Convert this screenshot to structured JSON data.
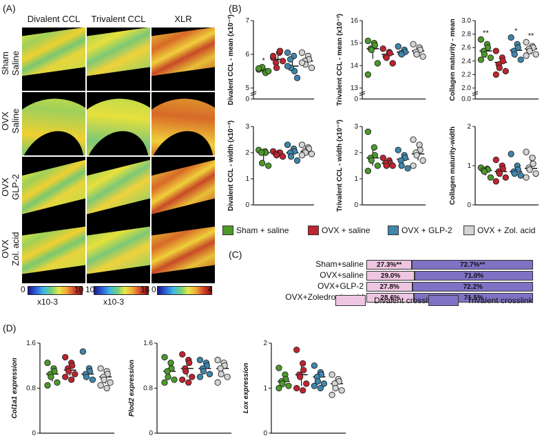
{
  "panels": {
    "a": "(A)",
    "b": "(B)",
    "c": "(C)",
    "d": "(D)"
  },
  "image_grid": {
    "columns": [
      "Divalent CCL",
      "Trivalent CCL",
      "XLR"
    ],
    "rows": [
      "Sham\nSaline",
      "OVX\nSaline",
      "OVX\nGLP-2",
      "OVX\nZol. acid"
    ],
    "colorbars": [
      {
        "min": "0",
        "max": "10",
        "unit": "x10-3"
      },
      {
        "min": "10",
        "max": "18",
        "unit": "x10-3"
      },
      {
        "min": "0",
        "max": "4",
        "unit": ""
      }
    ]
  },
  "legend": {
    "items": [
      {
        "label": "Sham + saline",
        "color": "#4c9a2a"
      },
      {
        "label": "OVX + saline",
        "color": "#c0242f"
      },
      {
        "label": "OVX + GLP-2",
        "color": "#3f86ad"
      },
      {
        "label": "OVX + Zol. acid",
        "color": "#d4d4d4"
      }
    ]
  },
  "chart_data": [
    {
      "id": "b1",
      "type": "scatter",
      "ylabel": "Divalent CCL - mean (x10⁻³)",
      "ylim": [
        5,
        7
      ],
      "yticks": [
        "0",
        "5",
        "6",
        "7"
      ],
      "break": true,
      "groups": [
        {
          "points": [
            5.55,
            5.5,
            5.45,
            5.6,
            5.62,
            5.5,
            5.58
          ],
          "median": 5.55,
          "lo": 5.47,
          "hi": 5.62,
          "sig": "*"
        },
        {
          "points": [
            5.9,
            6.05,
            6.1,
            5.75,
            5.6,
            5.8,
            5.95
          ],
          "median": 5.85,
          "lo": 5.7,
          "hi": 6.05,
          "sig": ""
        },
        {
          "points": [
            6.05,
            5.95,
            5.5,
            5.85,
            5.6,
            5.3,
            5.65
          ],
          "median": 5.65,
          "lo": 5.45,
          "hi": 5.95,
          "sig": ""
        },
        {
          "points": [
            6.05,
            5.95,
            5.85,
            5.8,
            5.7,
            5.6,
            5.75
          ],
          "median": 5.8,
          "lo": 5.68,
          "hi": 5.95,
          "sig": ""
        }
      ]
    },
    {
      "id": "b2",
      "type": "scatter",
      "ylabel": "Trivalent CCL - mean (x10⁻³)",
      "ylim": [
        13,
        16
      ],
      "yticks": [
        "0",
        "13",
        "14",
        "15",
        "16"
      ],
      "break": true,
      "groups": [
        {
          "points": [
            15.1,
            15.0,
            14.9,
            14.75,
            14.7,
            14.1,
            13.6
          ],
          "median": 14.75,
          "lo": 14.3,
          "hi": 15.0,
          "sig": ""
        },
        {
          "points": [
            14.75,
            14.6,
            14.55,
            14.4,
            14.35,
            14.1
          ],
          "median": 14.5,
          "lo": 14.3,
          "hi": 14.65,
          "sig": ""
        },
        {
          "points": [
            14.85,
            14.7,
            14.6,
            14.55,
            14.5
          ],
          "median": 14.6,
          "lo": 14.5,
          "hi": 14.75,
          "sig": ""
        },
        {
          "points": [
            14.95,
            14.8,
            14.7,
            14.6,
            14.5,
            14.4
          ],
          "median": 14.65,
          "lo": 14.45,
          "hi": 14.8,
          "sig": ""
        }
      ]
    },
    {
      "id": "b3",
      "type": "scatter",
      "ylabel": "Collagen maturity - mean",
      "ylim": [
        2.0,
        3.0
      ],
      "yticks": [
        "0.0",
        "2.0",
        "2.2",
        "2.4",
        "2.6",
        "2.8",
        "3.0"
      ],
      "break": true,
      "groups": [
        {
          "points": [
            2.72,
            2.65,
            2.6,
            2.55,
            2.5,
            2.45,
            2.42
          ],
          "median": 2.55,
          "lo": 2.45,
          "hi": 2.65,
          "sig": "**"
        },
        {
          "points": [
            2.55,
            2.45,
            2.4,
            2.35,
            2.3,
            2.25,
            2.2
          ],
          "median": 2.38,
          "lo": 2.28,
          "hi": 2.45,
          "sig": ""
        },
        {
          "points": [
            2.75,
            2.65,
            2.6,
            2.55,
            2.5,
            2.42
          ],
          "median": 2.56,
          "lo": 2.45,
          "hi": 2.68,
          "sig": "*"
        },
        {
          "points": [
            2.68,
            2.62,
            2.6,
            2.58,
            2.55,
            2.5,
            2.48
          ],
          "median": 2.58,
          "lo": 2.5,
          "hi": 2.62,
          "sig": "**"
        }
      ]
    },
    {
      "id": "b4",
      "type": "scatter",
      "ylabel": "Divalent CCL - width (x10⁻³)",
      "ylim": [
        0,
        3
      ],
      "yticks": [
        "0",
        "1",
        "2",
        "3"
      ],
      "break": false,
      "groups": [
        {
          "points": [
            2.1,
            2.05,
            2.0,
            2.0,
            1.6,
            1.5
          ],
          "median": 2.0,
          "lo": 1.6,
          "hi": 2.05,
          "sig": ""
        },
        {
          "points": [
            2.05,
            2.0,
            2.0,
            1.95,
            1.9,
            1.85
          ],
          "median": 1.95,
          "lo": 1.9,
          "hi": 2.0,
          "sig": ""
        },
        {
          "points": [
            2.3,
            2.15,
            2.05,
            2.0,
            1.85,
            1.7
          ],
          "median": 2.0,
          "lo": 1.8,
          "hi": 2.15,
          "sig": ""
        },
        {
          "points": [
            2.3,
            2.2,
            2.15,
            2.05,
            2.0,
            1.95,
            1.9
          ],
          "median": 2.05,
          "lo": 1.95,
          "hi": 2.2,
          "sig": ""
        }
      ]
    },
    {
      "id": "b5",
      "type": "scatter",
      "ylabel": "Trivalent CCL - width (x10⁻³)",
      "ylim": [
        0,
        3
      ],
      "yticks": [
        "0",
        "1",
        "2",
        "3"
      ],
      "break": false,
      "groups": [
        {
          "points": [
            2.8,
            2.2,
            1.9,
            1.8,
            1.7,
            1.5,
            1.3
          ],
          "median": 1.8,
          "lo": 1.5,
          "hi": 2.2,
          "sig": ""
        },
        {
          "points": [
            1.8,
            1.7,
            1.6,
            1.6,
            1.5,
            1.5
          ],
          "median": 1.6,
          "lo": 1.5,
          "hi": 1.75,
          "sig": ""
        },
        {
          "points": [
            2.1,
            1.9,
            1.8,
            1.7,
            1.5,
            1.4
          ],
          "median": 1.75,
          "lo": 1.5,
          "hi": 1.95,
          "sig": ""
        },
        {
          "points": [
            2.5,
            2.3,
            2.1,
            2.0,
            1.9,
            1.7,
            1.5
          ],
          "median": 1.95,
          "lo": 1.7,
          "hi": 2.3,
          "sig": ""
        }
      ]
    },
    {
      "id": "b6",
      "type": "scatter",
      "ylabel": "Collagen maturity-width",
      "ylim": [
        0,
        2
      ],
      "yticks": [
        "0",
        "1",
        "2"
      ],
      "break": false,
      "groups": [
        {
          "points": [
            0.95,
            0.92,
            0.9,
            0.88,
            0.85,
            0.7
          ],
          "median": 0.88,
          "lo": 0.75,
          "hi": 0.93,
          "sig": ""
        },
        {
          "points": [
            1.15,
            1.0,
            0.92,
            0.85,
            0.8,
            0.7,
            0.6
          ],
          "median": 0.85,
          "lo": 0.72,
          "hi": 1.0,
          "sig": ""
        },
        {
          "points": [
            1.3,
            1.0,
            0.9,
            0.85,
            0.8,
            0.75
          ],
          "median": 0.85,
          "lo": 0.78,
          "hi": 1.0,
          "sig": ""
        },
        {
          "points": [
            1.35,
            1.2,
            1.05,
            0.95,
            0.9,
            0.8,
            0.7
          ],
          "median": 0.93,
          "lo": 0.82,
          "hi": 1.15,
          "sig": ""
        }
      ]
    },
    {
      "id": "d1",
      "type": "scatter",
      "ylabel": "Col1a1 expression",
      "ylim": [
        0,
        1.6
      ],
      "yticks": [
        "0",
        "0.8",
        "1.6"
      ],
      "break": false,
      "groups": [
        {
          "points": [
            1.25,
            1.15,
            1.1,
            1.05,
            1.0,
            0.9,
            0.85
          ],
          "median": 1.05,
          "lo": 0.92,
          "hi": 1.15,
          "sig": ""
        },
        {
          "points": [
            1.35,
            1.25,
            1.2,
            1.15,
            1.1,
            1.05,
            1.0,
            0.95
          ],
          "median": 1.12,
          "lo": 1.02,
          "hi": 1.25,
          "sig": ""
        },
        {
          "points": [
            1.45,
            1.15,
            1.1,
            1.05,
            1.0,
            0.95
          ],
          "median": 1.05,
          "lo": 1.0,
          "hi": 1.12,
          "sig": ""
        },
        {
          "points": [
            1.15,
            1.1,
            1.05,
            1.0,
            0.95,
            0.9,
            0.85,
            0.8
          ],
          "median": 1.0,
          "lo": 0.88,
          "hi": 1.08,
          "sig": ""
        }
      ]
    },
    {
      "id": "d2",
      "type": "scatter",
      "ylabel": "Plod2 expression",
      "ylim": [
        0,
        1.6
      ],
      "yticks": [
        "0",
        "0.8",
        "1.6"
      ],
      "break": false,
      "groups": [
        {
          "points": [
            1.35,
            1.25,
            1.15,
            1.1,
            1.0,
            0.95,
            0.9
          ],
          "median": 1.1,
          "lo": 0.98,
          "hi": 1.25,
          "sig": ""
        },
        {
          "points": [
            1.4,
            1.3,
            1.25,
            1.15,
            1.1,
            1.0,
            0.95,
            0.9
          ],
          "median": 1.15,
          "lo": 1.0,
          "hi": 1.3,
          "sig": ""
        },
        {
          "points": [
            1.3,
            1.25,
            1.2,
            1.15,
            1.1,
            1.05,
            1.0
          ],
          "median": 1.15,
          "lo": 1.05,
          "hi": 1.25,
          "sig": ""
        },
        {
          "points": [
            1.3,
            1.25,
            1.2,
            1.15,
            1.05,
            1.0,
            0.9
          ],
          "median": 1.15,
          "lo": 1.0,
          "hi": 1.25,
          "sig": ""
        }
      ]
    },
    {
      "id": "d3",
      "type": "scatter",
      "ylabel": "Lox expression",
      "ylim": [
        0,
        2
      ],
      "yticks": [
        "0",
        "1",
        "2"
      ],
      "break": false,
      "groups": [
        {
          "points": [
            1.45,
            1.3,
            1.2,
            1.15,
            1.1,
            1.05,
            1.0
          ],
          "median": 1.15,
          "lo": 1.02,
          "hi": 1.3,
          "sig": ""
        },
        {
          "points": [
            1.85,
            1.55,
            1.4,
            1.3,
            1.25,
            1.1,
            1.0,
            0.95
          ],
          "median": 1.3,
          "lo": 1.05,
          "hi": 1.5,
          "sig": ""
        },
        {
          "points": [
            1.5,
            1.35,
            1.3,
            1.25,
            1.15,
            1.1,
            1.05,
            1.0
          ],
          "median": 1.25,
          "lo": 1.1,
          "hi": 1.35,
          "sig": ""
        },
        {
          "points": [
            1.3,
            1.2,
            1.15,
            1.1,
            1.0,
            0.95,
            0.85
          ],
          "median": 1.1,
          "lo": 0.95,
          "hi": 1.2,
          "sig": ""
        }
      ]
    },
    {
      "id": "c",
      "type": "bar",
      "title": "",
      "categories": [
        "Sham+saline",
        "OVX+saline",
        "OVX+GLP-2",
        "OVX+Zoledronic acid"
      ],
      "series": [
        {
          "name": "Divalent crosslink",
          "values": [
            27.3,
            29.0,
            27.8,
            28.6
          ],
          "labels": [
            "27.3%**",
            "29.0%",
            "27.8%",
            "28.6%"
          ],
          "color": "#eec6e2"
        },
        {
          "name": "Trivalent crosslink",
          "values": [
            72.7,
            71.0,
            72.2,
            71.5
          ],
          "labels": [
            "72.7%**",
            "71.0%",
            "72.2%",
            "71.5%"
          ],
          "color": "#7f72c4"
        }
      ]
    }
  ]
}
